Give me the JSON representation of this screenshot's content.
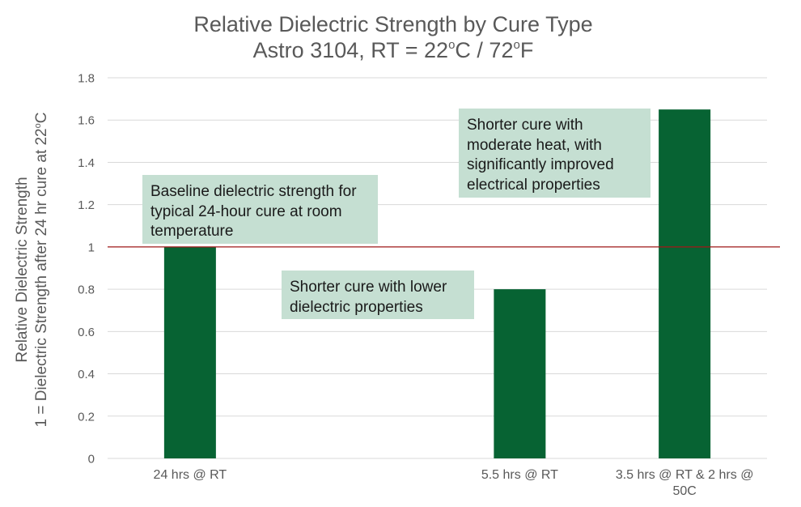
{
  "title": {
    "line1": "Relative Dielectric Strength by Cure Type",
    "line2_pre": "Astro 3104, RT = 22",
    "deg1": "o",
    "line2_mid": "C / 72",
    "deg2": "o",
    "line2_post": "F"
  },
  "y_axis": {
    "line1": "Relative Dielectric Strength",
    "line2_pre": "1 = Dielectric Strength after 24 hr cure at 22",
    "deg": "o",
    "line2_post": "C"
  },
  "annotations": [
    {
      "text": "Baseline dielectric strength for typical 24-hour cure at room temperature"
    },
    {
      "text": "Shorter cure with lower dielectric properties"
    },
    {
      "text": "Shorter cure with moderate heat, with significantly improved electrical properties"
    }
  ],
  "chart_data": {
    "type": "bar",
    "title": "Relative Dielectric Strength by Cure Type Astro 3104, RT = 22oC / 72oF",
    "categories": [
      "24 hrs @ RT",
      "",
      "5.5 hrs @ RT",
      "3.5 hrs @ RT & 2 hrs @ 50C"
    ],
    "values": [
      1.0,
      null,
      0.8,
      1.65
    ],
    "ylabel": "Relative Dielectric Strength 1 = Dielectric Strength after 24 hr cure at 22oC",
    "xlabel": "",
    "ylim": [
      0,
      1.8
    ],
    "yticks": [
      0,
      0.2,
      0.4,
      0.6,
      0.8,
      1,
      1.2,
      1.4,
      1.6,
      1.8
    ],
    "ytick_labels": [
      "0",
      "0.2",
      "0.4",
      "0.6",
      "0.8",
      "1",
      "1.2",
      "1.4",
      "1.6",
      "1.8"
    ],
    "reference_line": 1,
    "grid": true,
    "legend": "none",
    "bar_color": "#076333",
    "reference_line_color": "#a01818",
    "callout_color": "#c5dfd2"
  }
}
